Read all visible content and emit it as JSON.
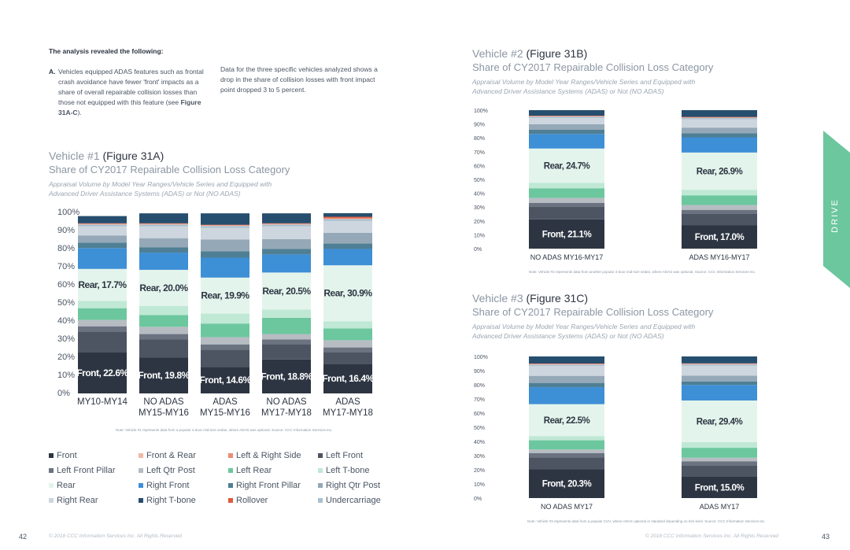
{
  "intro": {
    "heading": "The analysis revealed the following:",
    "point_a_letter": "A.",
    "point_a_text": "Vehicles equipped ADAS features such as frontal crash avoidance have fewer 'front' impacts as a share of overall repairable collision losses than those not equipped with this feature (see",
    "point_a_ref": "Figure 31A-C",
    "point_a_end": ").",
    "point_b_text": "Data for the three specific vehicles analyzed shows a drop in the share of collision losses with front impact point dropped 3 to 5 percent."
  },
  "figures": [
    {
      "title_prefix": "Vehicle #1",
      "title_fig": "(Figure 31A)",
      "subtitle": "Share of CY2017 Repairable Collision Loss Category",
      "desc_line1": "Appraisal Volume by Model Year Ranges/Vehicle Series and Equipped with",
      "desc_line2": "Advanced Driver Assistance Systems (ADAS) or Not (NO ADAS)",
      "note": "Note: Vehicle #1 represents data from a popular 4-door mid-size sedan, where ADAS was optional.   Source: CCC Information Services Inc."
    },
    {
      "title_prefix": "Vehicle #2",
      "title_fig": "(Figure 31B)",
      "subtitle": "Share of CY2017 Repairable Collision Loss Category",
      "desc_line1": "Appraisal Volume by Model Year Ranges/Vehicle Series and Equipped with",
      "desc_line2": "Advanced Driver Assistance Systems (ADAS) or Not (NO ADAS)",
      "note": "Note: Vehicle #2 represents data from another popular 4-door mid-size sedan, where ADAS was optional.   Source: CCC Information Services Inc."
    },
    {
      "title_prefix": "Vehicle #3",
      "title_fig": "(Figure 31C)",
      "subtitle": "Share of CY2017 Repairable Collision Loss Category",
      "desc_line1": "Appraisal Volume by Model Year Ranges/Vehicle Series and Equipped with",
      "desc_line2": "Advanced Driver Assistance Systems (ADAS) or Not (NO ADAS)",
      "note": "Note: Vehicle #3 represents data from a popular CUV, where ADAS optional or standard depending on trim level.   Source: CCC Information Services Inc."
    }
  ],
  "legend": [
    {
      "name": "Front",
      "color": "#2d3542"
    },
    {
      "name": "Front & Rear",
      "color": "#f2b8a6"
    },
    {
      "name": "Left & Right Side",
      "color": "#ef8a73"
    },
    {
      "name": "Left Front",
      "color": "#4d5563"
    },
    {
      "name": "Left Front Pillar",
      "color": "#6b7280"
    },
    {
      "name": "Left Qtr Post",
      "color": "#b7bcc3"
    },
    {
      "name": "Left Rear",
      "color": "#6cc79e"
    },
    {
      "name": "Left T-bone",
      "color": "#bfe8d5"
    },
    {
      "name": "Rear",
      "color": "#e3f4ec"
    },
    {
      "name": "Right Front",
      "color": "#3d8fd6"
    },
    {
      "name": "Right Front Pillar",
      "color": "#4f7f94"
    },
    {
      "name": "Right Qtr Post",
      "color": "#95a8b7"
    },
    {
      "name": "Right Rear",
      "color": "#cdd6de"
    },
    {
      "name": "Right T-bone",
      "color": "#264e6e"
    },
    {
      "name": "Rollover",
      "color": "#e05a3a"
    },
    {
      "name": "Undercarriage",
      "color": "#a8c0d0"
    }
  ],
  "chart_data": [
    {
      "type": "bar",
      "stacked": true,
      "ylim": [
        0,
        100
      ],
      "yticks": [
        "0%",
        "10%",
        "20%",
        "30%",
        "40%",
        "50%",
        "60%",
        "70%",
        "80%",
        "90%",
        "100%"
      ],
      "categories": [
        [
          "MY10-MY14"
        ],
        [
          "NO ADAS",
          "MY15-MY16"
        ],
        [
          "ADAS",
          "MY15-MY16"
        ],
        [
          "NO ADAS",
          "MY17-MY18"
        ],
        [
          "ADAS",
          "MY17-MY18"
        ]
      ],
      "segment_order": [
        "Front",
        "Left Front",
        "Left Front Pillar",
        "Left Qtr Post",
        "Left Rear",
        "Left T-bone",
        "Rear",
        "Right Front",
        "Right Front Pillar",
        "Right Qtr Post",
        "Right Rear",
        "Undercarriage",
        "Front & Rear",
        "Left & Right Side",
        "Rollover",
        "Right T-bone"
      ],
      "values": [
        [
          22.6,
          11.5,
          3.0,
          3.5,
          6.5,
          4.0,
          17.7,
          11.5,
          3.0,
          4.0,
          5.0,
          1.0,
          0.2,
          0.3,
          0.2,
          4.0
        ],
        [
          19.8,
          10.0,
          3.0,
          4.0,
          6.5,
          5.0,
          20.0,
          9.5,
          3.0,
          5.0,
          6.5,
          1.0,
          0.2,
          0.3,
          0.2,
          5.5
        ],
        [
          14.6,
          9.5,
          3.0,
          4.0,
          7.5,
          5.5,
          19.9,
          11.0,
          3.5,
          6.5,
          6.5,
          1.0,
          0.2,
          0.3,
          0.2,
          6.3
        ],
        [
          18.8,
          8.5,
          2.5,
          3.0,
          9.0,
          4.5,
          20.5,
          10.0,
          3.0,
          5.5,
          7.0,
          1.0,
          0.2,
          0.3,
          0.2,
          5.5
        ],
        [
          16.4,
          6.5,
          2.5,
          4.0,
          6.5,
          4.0,
          30.9,
          9.0,
          3.0,
          6.0,
          6.5,
          1.0,
          0.2,
          0.5,
          0.6,
          2.0
        ]
      ],
      "labels": [
        {
          "front": "Front, 22.6%",
          "rear": "Rear, 17.7%"
        },
        {
          "front": "Front, 19.8%",
          "rear": "Rear, 20.0%"
        },
        {
          "front": "Front, 14.6%",
          "rear": "Rear, 19.9%"
        },
        {
          "front": "Front, 18.8%",
          "rear": "Rear, 20.5%"
        },
        {
          "front": "Front, 16.4%",
          "rear": "Rear, 30.9%"
        }
      ]
    },
    {
      "type": "bar",
      "stacked": true,
      "ylim": [
        0,
        100
      ],
      "yticks": [
        "0%",
        "10%",
        "20%",
        "30%",
        "40%",
        "50%",
        "60%",
        "70%",
        "80%",
        "90%",
        "100%"
      ],
      "categories": [
        [
          "NO ADAS MY16-MY17"
        ],
        [
          "ADAS MY16-MY17"
        ]
      ],
      "segment_order": [
        "Front",
        "Left Front",
        "Left Front Pillar",
        "Left Qtr Post",
        "Left Rear",
        "Left T-bone",
        "Rear",
        "Right Front",
        "Right Front Pillar",
        "Right Qtr Post",
        "Right Rear",
        "Undercarriage",
        "Front & Rear",
        "Left & Right Side",
        "Rollover",
        "Right T-bone"
      ],
      "values": [
        [
          21.1,
          9.0,
          3.0,
          3.5,
          7.0,
          4.0,
          24.7,
          10.5,
          3.0,
          4.0,
          4.5,
          1.0,
          0.2,
          0.3,
          0.2,
          4.0
        ],
        [
          17.0,
          8.0,
          3.0,
          3.5,
          7.0,
          4.0,
          26.9,
          11.0,
          3.0,
          4.0,
          6.0,
          1.0,
          0.2,
          0.3,
          0.2,
          4.9
        ]
      ],
      "labels": [
        {
          "front": "Front, 21.1%",
          "rear": "Rear, 24.7%"
        },
        {
          "front": "Front, 17.0%",
          "rear": "Rear, 26.9%"
        }
      ]
    },
    {
      "type": "bar",
      "stacked": true,
      "ylim": [
        0,
        100
      ],
      "yticks": [
        "0%",
        "10%",
        "20%",
        "30%",
        "40%",
        "50%",
        "60%",
        "70%",
        "80%",
        "90%",
        "100%"
      ],
      "categories": [
        [
          "NO ADAS MY17"
        ],
        [
          "ADAS MY17"
        ]
      ],
      "segment_order": [
        "Front",
        "Left Front",
        "Left Front Pillar",
        "Left Qtr Post",
        "Left Rear",
        "Left T-bone",
        "Rear",
        "Right Front",
        "Right Front Pillar",
        "Right Qtr Post",
        "Right Rear",
        "Undercarriage",
        "Front & Rear",
        "Left & Right Side",
        "Rollover",
        "Right T-bone"
      ],
      "values": [
        [
          20.3,
          8.5,
          3.0,
          2.5,
          6.5,
          3.0,
          22.5,
          12.0,
          3.0,
          5.0,
          7.0,
          1.0,
          0.2,
          0.3,
          0.2,
          5.0
        ],
        [
          15.0,
          8.0,
          3.0,
          2.5,
          7.0,
          4.0,
          29.4,
          11.0,
          2.5,
          4.0,
          7.0,
          1.0,
          0.2,
          0.3,
          0.2,
          4.9
        ]
      ],
      "labels": [
        {
          "front": "Front, 20.3%",
          "rear": "Rear, 22.5%"
        },
        {
          "front": "Front, 15.0%",
          "rear": "Rear, 29.4%"
        }
      ]
    }
  ],
  "footer": {
    "left_page": "42",
    "right_page": "43",
    "copyright_left": "© 2018 CCC Information Services Inc. All Rights Reserved",
    "copyright_right": "© 2018 CCC Information Services Inc. All Rights Reserved"
  },
  "tab": {
    "label": "DRIVE",
    "color": "#6cc79e"
  }
}
